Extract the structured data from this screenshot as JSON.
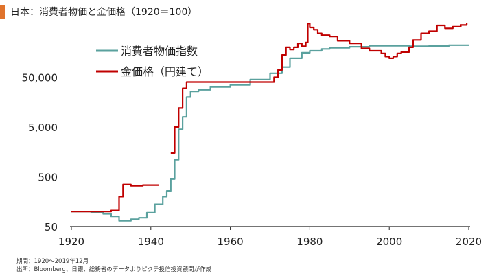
{
  "title": "日本：消費者物価と金価格（1920＝100）",
  "notes": {
    "period": "期間：1920～2019年12月",
    "source": "出所：Bloomberg、日銀、総務省のデータよりピクテ投信投資顧問が作成"
  },
  "colors": {
    "cpi": "#5aa19e",
    "gold": "#c00000",
    "axis": "#222222",
    "title_accent": "#e0732c"
  },
  "chart_data": {
    "type": "line",
    "title": "日本：消費者物価と金価格（1920＝100）",
    "xlabel": "",
    "ylabel": "",
    "y_scale": "log",
    "xlim": [
      1920,
      2020
    ],
    "ylim": [
      50,
      500000
    ],
    "x_ticks": [
      1920,
      1940,
      1960,
      1980,
      2000,
      2020
    ],
    "x_tick_labels": [
      "1920",
      "1940",
      "1960",
      "1980",
      "2000",
      "2020"
    ],
    "y_ticks": [
      50,
      500,
      5000,
      50000
    ],
    "y_tick_labels": [
      "50",
      "500",
      "5,000",
      "50,000"
    ],
    "legend_position": "top-center",
    "grid": false,
    "series": [
      {
        "name": "消費者物価指数",
        "color": "#5aa19e",
        "x": [
          1920,
          1925,
          1928,
          1930,
          1932,
          1935,
          1937,
          1939,
          1941,
          1943,
          1944,
          1945,
          1946,
          1947,
          1948,
          1949,
          1950,
          1952,
          1955,
          1960,
          1965,
          1970,
          1973,
          1975,
          1978,
          1980,
          1983,
          1985,
          1990,
          1995,
          2000,
          2005,
          2010,
          2015,
          2020
        ],
        "y": [
          100,
          95,
          90,
          80,
          65,
          70,
          75,
          95,
          140,
          200,
          260,
          450,
          1100,
          4500,
          8000,
          20000,
          26000,
          28000,
          32000,
          35000,
          45000,
          60000,
          80000,
          120000,
          155000,
          170000,
          185000,
          195000,
          205000,
          215000,
          215000,
          210000,
          212000,
          220000,
          225000
        ]
      },
      {
        "name": "金価格（円建て）",
        "color": "#c00000",
        "x": [
          1920,
          1925,
          1928,
          1930,
          1931,
          1932,
          1933,
          1935,
          1938,
          1941,
          1942,
          null,
          1945,
          1945.5,
          1946,
          1946.5,
          1947,
          1947.5,
          1948,
          1948.5,
          1949,
          1955,
          1960,
          1965,
          1968,
          1971,
          1972,
          1973,
          1974,
          1975,
          1976,
          1977,
          1978,
          1979,
          1979.5,
          1980,
          1981,
          1982,
          1983,
          1985,
          1987,
          1990,
          1993,
          1995,
          1998,
          1999,
          2000,
          2001,
          2002,
          2003,
          2005,
          2006,
          2008,
          2010,
          2012,
          2014,
          2016,
          2018,
          2019.5
        ],
        "y": [
          100,
          100,
          100,
          105,
          105,
          200,
          350,
          330,
          340,
          340,
          340,
          null,
          1500,
          1500,
          5000,
          5000,
          12000,
          12000,
          30000,
          30000,
          40000,
          40000,
          40000,
          40000,
          40000,
          50000,
          70000,
          140000,
          200000,
          180000,
          200000,
          240000,
          210000,
          250000,
          600000,
          500000,
          450000,
          380000,
          350000,
          330000,
          270000,
          240000,
          190000,
          170000,
          150000,
          130000,
          120000,
          130000,
          150000,
          160000,
          200000,
          280000,
          380000,
          420000,
          550000,
          480000,
          520000,
          560000,
          620000
        ]
      }
    ]
  }
}
